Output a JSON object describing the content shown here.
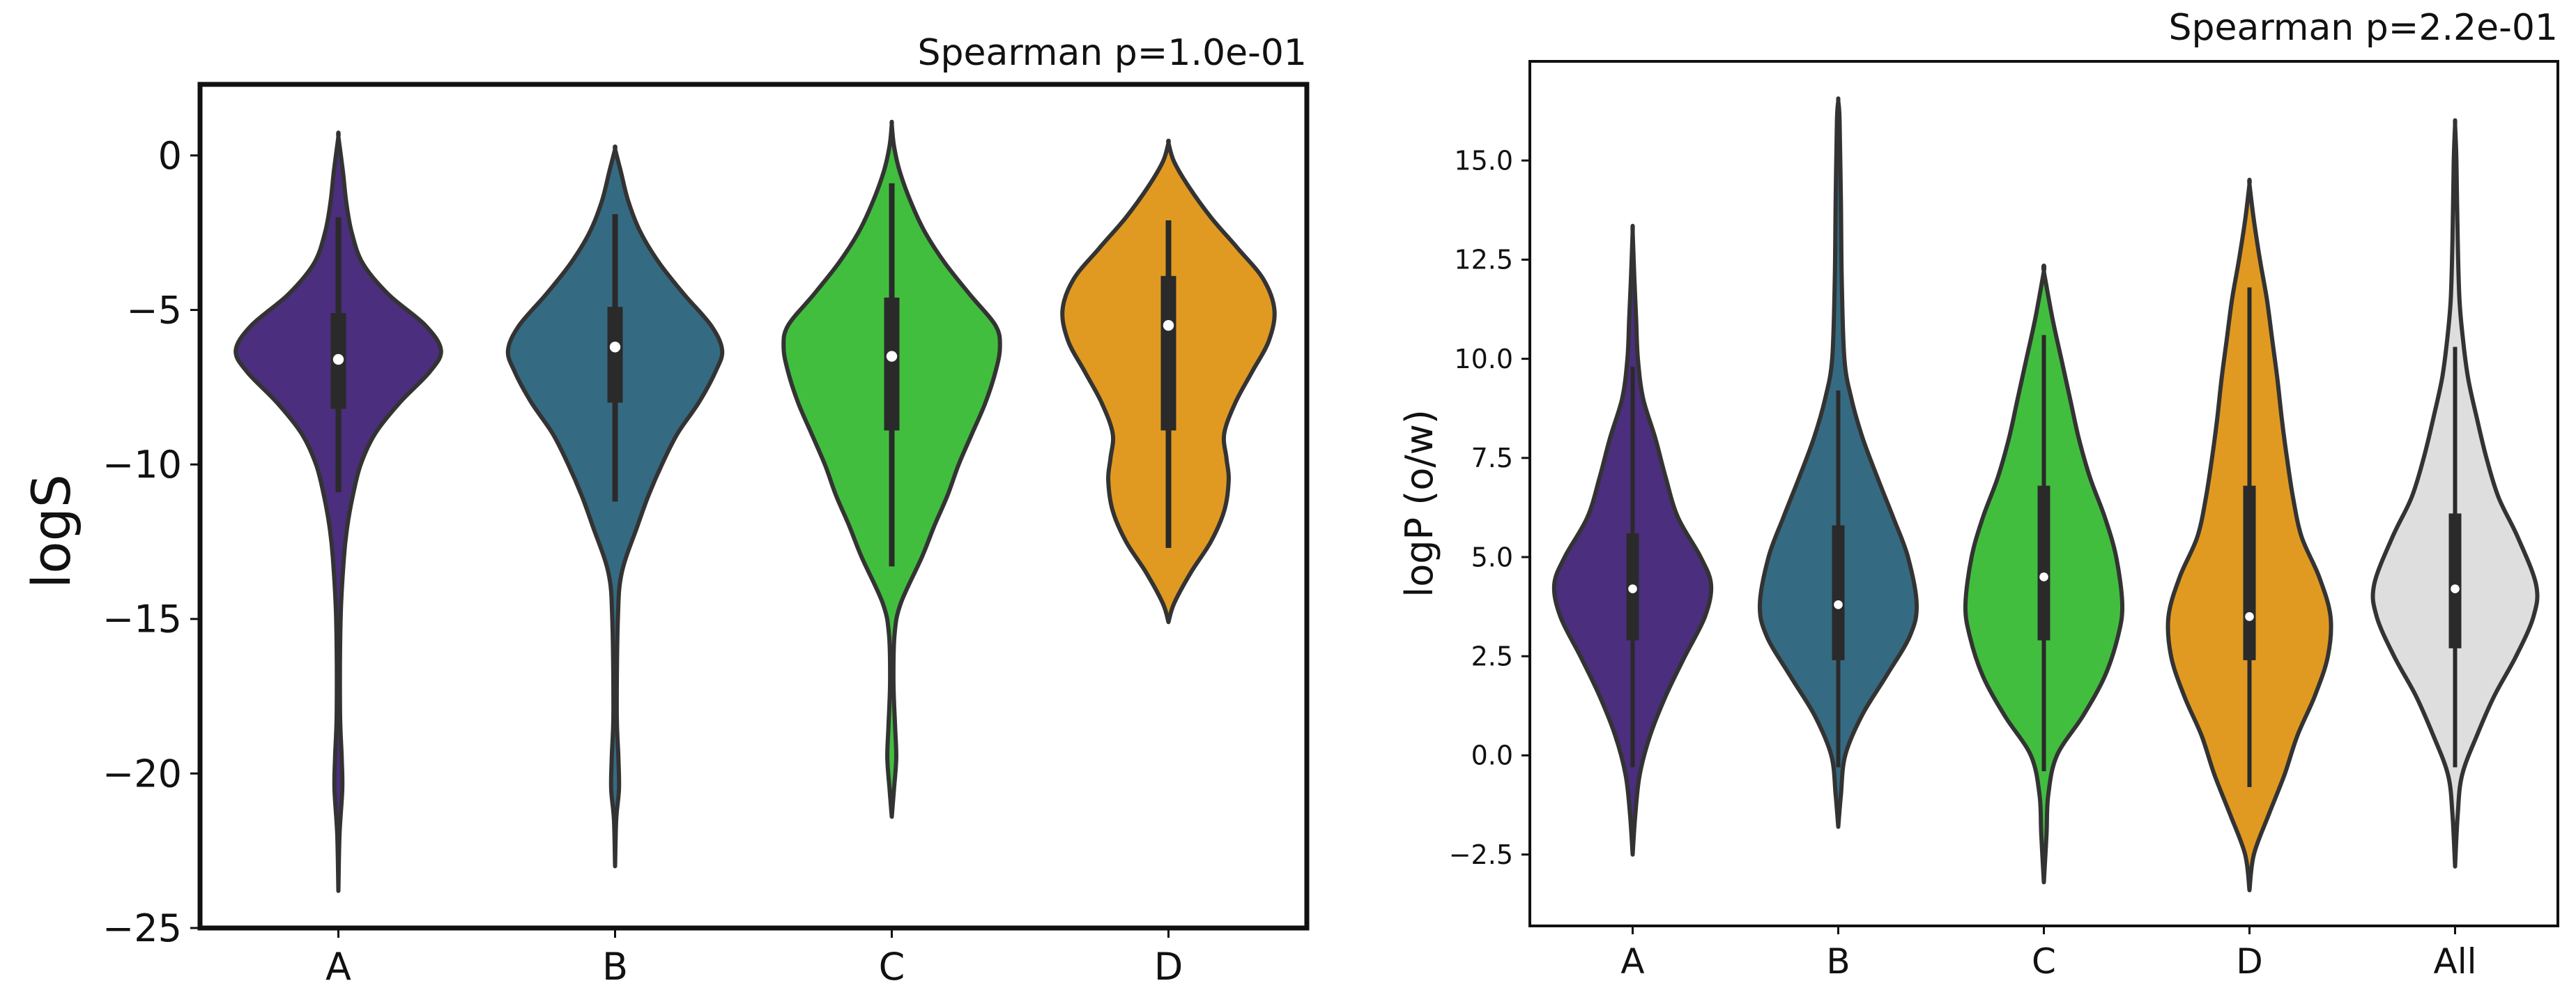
{
  "chart_data": [
    {
      "type": "violin",
      "title": "",
      "annotation": "Spearman p=1.0e-01",
      "xlabel": "",
      "ylabel": "logS",
      "ylim": [
        -25,
        2.3
      ],
      "yticks": [
        0,
        -5,
        -10,
        -15,
        -20,
        -25
      ],
      "ytick_labels": [
        "0",
        "−5",
        "−10",
        "−15",
        "−20",
        "−25"
      ],
      "categories": [
        "A",
        "B",
        "C",
        "D"
      ],
      "colors": [
        "#4b2e7d",
        "#356b82",
        "#42be3f",
        "#e09a22"
      ],
      "violins": [
        {
          "name": "A",
          "min": -23.8,
          "max": 0.6,
          "q1": -8.2,
          "median": -6.6,
          "q3": -5.1,
          "wlo": -10.9,
          "whi": -2.0,
          "profile": [
            [
              -23.8,
              0
            ],
            [
              -22,
              0.01
            ],
            [
              -20.5,
              0.035
            ],
            [
              -19.5,
              0.03
            ],
            [
              -18,
              0.015
            ],
            [
              -15,
              0.02
            ],
            [
              -13,
              0.05
            ],
            [
              -12,
              0.08
            ],
            [
              -11,
              0.13
            ],
            [
              -10,
              0.2
            ],
            [
              -9,
              0.33
            ],
            [
              -8,
              0.55
            ],
            [
              -7,
              0.82
            ],
            [
              -6.3,
              0.92
            ],
            [
              -5.5,
              0.78
            ],
            [
              -4.5,
              0.45
            ],
            [
              -3.5,
              0.22
            ],
            [
              -2.5,
              0.12
            ],
            [
              -1.5,
              0.07
            ],
            [
              -0.5,
              0.04
            ],
            [
              0.6,
              0
            ]
          ]
        },
        {
          "name": "B",
          "min": -23.0,
          "max": 0.2,
          "q1": -8.0,
          "median": -6.2,
          "q3": -4.9,
          "wlo": -11.2,
          "whi": -1.9,
          "profile": [
            [
              -23,
              0
            ],
            [
              -21.5,
              0.01
            ],
            [
              -20.5,
              0.035
            ],
            [
              -19.5,
              0.03
            ],
            [
              -18,
              0.015
            ],
            [
              -15,
              0.025
            ],
            [
              -13.5,
              0.06
            ],
            [
              -12,
              0.2
            ],
            [
              -11,
              0.3
            ],
            [
              -10,
              0.42
            ],
            [
              -9,
              0.56
            ],
            [
              -8,
              0.75
            ],
            [
              -7,
              0.9
            ],
            [
              -6.3,
              0.96
            ],
            [
              -5.5,
              0.86
            ],
            [
              -4.5,
              0.62
            ],
            [
              -3.5,
              0.4
            ],
            [
              -2.5,
              0.23
            ],
            [
              -1.5,
              0.12
            ],
            [
              -0.5,
              0.05
            ],
            [
              0.2,
              0
            ]
          ]
        },
        {
          "name": "C",
          "min": -21.4,
          "max": 1.0,
          "q1": -8.9,
          "median": -6.5,
          "q3": -4.6,
          "wlo": -13.3,
          "whi": -0.9,
          "profile": [
            [
              -21.4,
              0
            ],
            [
              -20.5,
              0.02
            ],
            [
              -19.5,
              0.04
            ],
            [
              -18.5,
              0.03
            ],
            [
              -17,
              0.015
            ],
            [
              -15.5,
              0.025
            ],
            [
              -14.5,
              0.08
            ],
            [
              -13,
              0.27
            ],
            [
              -12,
              0.38
            ],
            [
              -11,
              0.5
            ],
            [
              -10,
              0.6
            ],
            [
              -9,
              0.72
            ],
            [
              -8,
              0.84
            ],
            [
              -7,
              0.93
            ],
            [
              -6.2,
              0.97
            ],
            [
              -5.5,
              0.93
            ],
            [
              -4.5,
              0.7
            ],
            [
              -3.5,
              0.48
            ],
            [
              -2.5,
              0.3
            ],
            [
              -1.5,
              0.17
            ],
            [
              -0.5,
              0.07
            ],
            [
              0.3,
              0.02
            ],
            [
              1.0,
              0
            ]
          ]
        },
        {
          "name": "D",
          "min": -15.1,
          "max": 0.4,
          "q1": -8.9,
          "median": -5.5,
          "q3": -3.9,
          "wlo": -12.7,
          "whi": -2.1,
          "profile": [
            [
              -15.1,
              0
            ],
            [
              -14.5,
              0.05
            ],
            [
              -13.5,
              0.2
            ],
            [
              -12.5,
              0.38
            ],
            [
              -11.5,
              0.5
            ],
            [
              -10.5,
              0.54
            ],
            [
              -9.8,
              0.52
            ],
            [
              -9,
              0.5
            ],
            [
              -8,
              0.6
            ],
            [
              -7,
              0.75
            ],
            [
              -6,
              0.9
            ],
            [
              -5,
              0.95
            ],
            [
              -4,
              0.85
            ],
            [
              -3,
              0.62
            ],
            [
              -2,
              0.38
            ],
            [
              -1,
              0.18
            ],
            [
              -0.2,
              0.05
            ],
            [
              0.4,
              0
            ]
          ]
        }
      ]
    },
    {
      "type": "violin",
      "title": "",
      "annotation": "Spearman p=2.2e-01",
      "xlabel": "",
      "ylabel": "logP (o/w)",
      "ylim": [
        -4.3,
        17.5
      ],
      "yticks": [
        15.0,
        12.5,
        10.0,
        7.5,
        5.0,
        2.5,
        0.0,
        -2.5
      ],
      "ytick_labels": [
        "15.0",
        "12.5",
        "10.0",
        "7.5",
        "5.0",
        "2.5",
        "0.0",
        "−2.5"
      ],
      "categories": [
        "A",
        "B",
        "C",
        "D",
        "All"
      ],
      "colors": [
        "#4b2e7d",
        "#356b82",
        "#42be3f",
        "#e09a22",
        "#dedede"
      ],
      "violins": [
        {
          "name": "A",
          "min": -2.5,
          "max": 13.2,
          "q1": 2.9,
          "median": 4.2,
          "q3": 5.6,
          "wlo": -0.3,
          "whi": 9.8,
          "profile": [
            [
              -2.5,
              0
            ],
            [
              -1.5,
              0.03
            ],
            [
              -0.5,
              0.08
            ],
            [
              0.5,
              0.2
            ],
            [
              1.5,
              0.38
            ],
            [
              2.5,
              0.6
            ],
            [
              3.5,
              0.83
            ],
            [
              4.3,
              0.9
            ],
            [
              5,
              0.78
            ],
            [
              6,
              0.52
            ],
            [
              7,
              0.38
            ],
            [
              8,
              0.26
            ],
            [
              9,
              0.12
            ],
            [
              10,
              0.06
            ],
            [
              11,
              0.04
            ],
            [
              12,
              0.02
            ],
            [
              13.2,
              0
            ]
          ]
        },
        {
          "name": "B",
          "min": -1.8,
          "max": 16.5,
          "q1": 2.4,
          "median": 3.8,
          "q3": 5.8,
          "wlo": -0.3,
          "whi": 9.2,
          "profile": [
            [
              -1.8,
              0
            ],
            [
              -1,
              0.03
            ],
            [
              0,
              0.08
            ],
            [
              1,
              0.27
            ],
            [
              2,
              0.55
            ],
            [
              3,
              0.82
            ],
            [
              3.8,
              0.9
            ],
            [
              5,
              0.8
            ],
            [
              6,
              0.63
            ],
            [
              7,
              0.45
            ],
            [
              8,
              0.28
            ],
            [
              9,
              0.15
            ],
            [
              10,
              0.07
            ],
            [
              12,
              0.04
            ],
            [
              14,
              0.03
            ],
            [
              16,
              0.015
            ],
            [
              16.5,
              0
            ]
          ]
        },
        {
          "name": "C",
          "min": -3.2,
          "max": 12.2,
          "q1": 2.9,
          "median": 4.5,
          "q3": 6.8,
          "wlo": -0.4,
          "whi": 10.6,
          "profile": [
            [
              -3.2,
              0
            ],
            [
              -2,
              0.03
            ],
            [
              -1,
              0.05
            ],
            [
              0,
              0.15
            ],
            [
              1,
              0.45
            ],
            [
              2,
              0.7
            ],
            [
              3,
              0.85
            ],
            [
              3.8,
              0.9
            ],
            [
              5,
              0.83
            ],
            [
              6,
              0.7
            ],
            [
              7,
              0.53
            ],
            [
              8,
              0.4
            ],
            [
              9,
              0.3
            ],
            [
              10,
              0.2
            ],
            [
              11,
              0.1
            ],
            [
              12.2,
              0
            ]
          ]
        },
        {
          "name": "D",
          "min": -3.4,
          "max": 14.4,
          "q1": 2.4,
          "median": 3.5,
          "q3": 6.8,
          "wlo": -0.8,
          "whi": 11.8,
          "profile": [
            [
              -3.4,
              0
            ],
            [
              -2.5,
              0.05
            ],
            [
              -1.5,
              0.22
            ],
            [
              -0.5,
              0.4
            ],
            [
              0.5,
              0.55
            ],
            [
              1.5,
              0.75
            ],
            [
              2.5,
              0.9
            ],
            [
              3.5,
              0.93
            ],
            [
              4.5,
              0.8
            ],
            [
              5.5,
              0.6
            ],
            [
              6.5,
              0.5
            ],
            [
              7.5,
              0.43
            ],
            [
              8.5,
              0.37
            ],
            [
              9.5,
              0.32
            ],
            [
              10.5,
              0.26
            ],
            [
              11.5,
              0.2
            ],
            [
              12.5,
              0.12
            ],
            [
              13.5,
              0.05
            ],
            [
              14.4,
              0
            ]
          ]
        },
        {
          "name": "All",
          "min": -2.8,
          "max": 15.9,
          "q1": 2.7,
          "median": 4.2,
          "q3": 6.1,
          "wlo": -0.3,
          "whi": 10.3,
          "profile": [
            [
              -2.8,
              0
            ],
            [
              -1.5,
              0.03
            ],
            [
              -0.5,
              0.08
            ],
            [
              0.5,
              0.25
            ],
            [
              1.5,
              0.45
            ],
            [
              2.5,
              0.7
            ],
            [
              3.5,
              0.9
            ],
            [
              4.3,
              0.93
            ],
            [
              5.5,
              0.72
            ],
            [
              6.5,
              0.5
            ],
            [
              7.5,
              0.36
            ],
            [
              8.5,
              0.25
            ],
            [
              9.5,
              0.15
            ],
            [
              10.5,
              0.09
            ],
            [
              11.5,
              0.05
            ],
            [
              13,
              0.03
            ],
            [
              15,
              0.015
            ],
            [
              15.9,
              0
            ]
          ]
        }
      ]
    }
  ]
}
